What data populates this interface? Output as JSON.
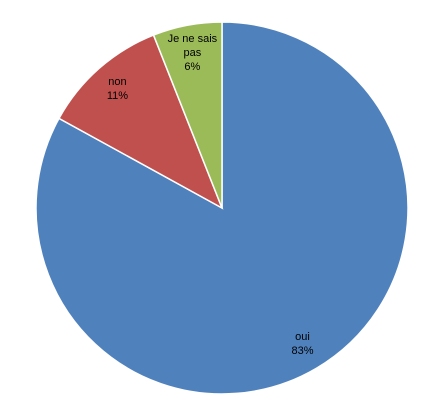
{
  "chart_data": {
    "type": "pie",
    "categories": [
      "oui",
      "non",
      "Je ne sais pas"
    ],
    "values": [
      83,
      11,
      6
    ],
    "value_labels": [
      "83%",
      "11%",
      "6%"
    ],
    "colors": [
      "#4f81bd",
      "#c0504d",
      "#9bbb59"
    ]
  }
}
